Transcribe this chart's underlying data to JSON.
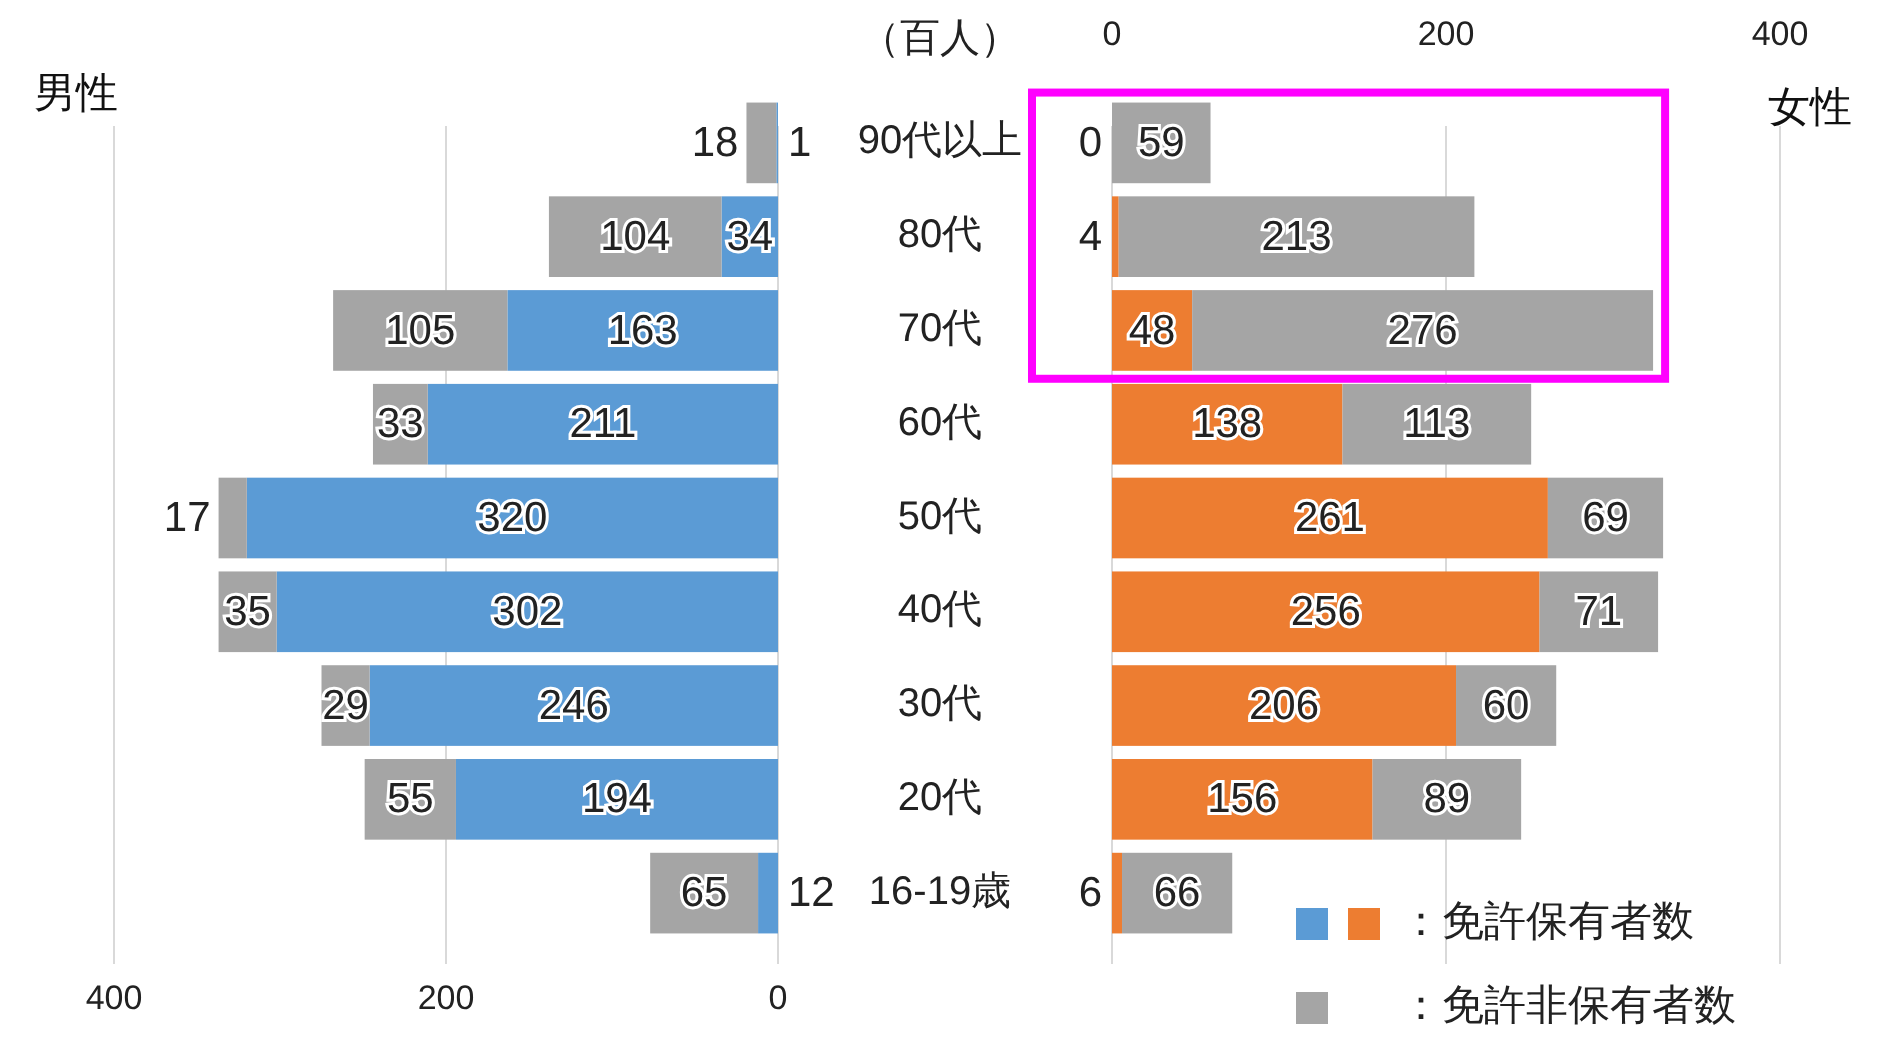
{
  "chart_data": [
    {
      "type": "bar",
      "orientation": "horizontal",
      "stacked": true,
      "title": "男性",
      "annotations": [
        "（百人）"
      ],
      "categories": [
        "90代以上",
        "80代",
        "70代",
        "60代",
        "50代",
        "40代",
        "30代",
        "20代",
        "16-19歳"
      ],
      "series": [
        {
          "color": "#5b9bd5",
          "values": [
            1,
            34,
            163,
            211,
            320,
            302,
            246,
            194,
            12
          ]
        },
        {
          "color": "#a5a5a5",
          "values": [
            18,
            104,
            105,
            33,
            17,
            35,
            29,
            55,
            65
          ]
        }
      ],
      "xlim": [
        400,
        0
      ],
      "xticks": [
        400,
        200,
        0
      ],
      "grid": "x",
      "data_labels": true
    },
    {
      "type": "bar",
      "orientation": "horizontal",
      "stacked": true,
      "title": "女性",
      "series": [
        {
          "name": "：免許保有者数",
          "color": "#ed7d31",
          "values": [
            0,
            4,
            48,
            138,
            261,
            256,
            206,
            156,
            6
          ]
        },
        {
          "name": "：免許非保有者数",
          "color": "#a5a5a5",
          "values": [
            59,
            213,
            276,
            113,
            69,
            71,
            60,
            89,
            66
          ]
        }
      ],
      "xlim": [
        0,
        400
      ],
      "xticks": [
        0,
        200,
        400
      ],
      "grid": "x",
      "data_labels": true,
      "tick_labels": "x",
      "legend": "bottom right"
    }
  ]
}
